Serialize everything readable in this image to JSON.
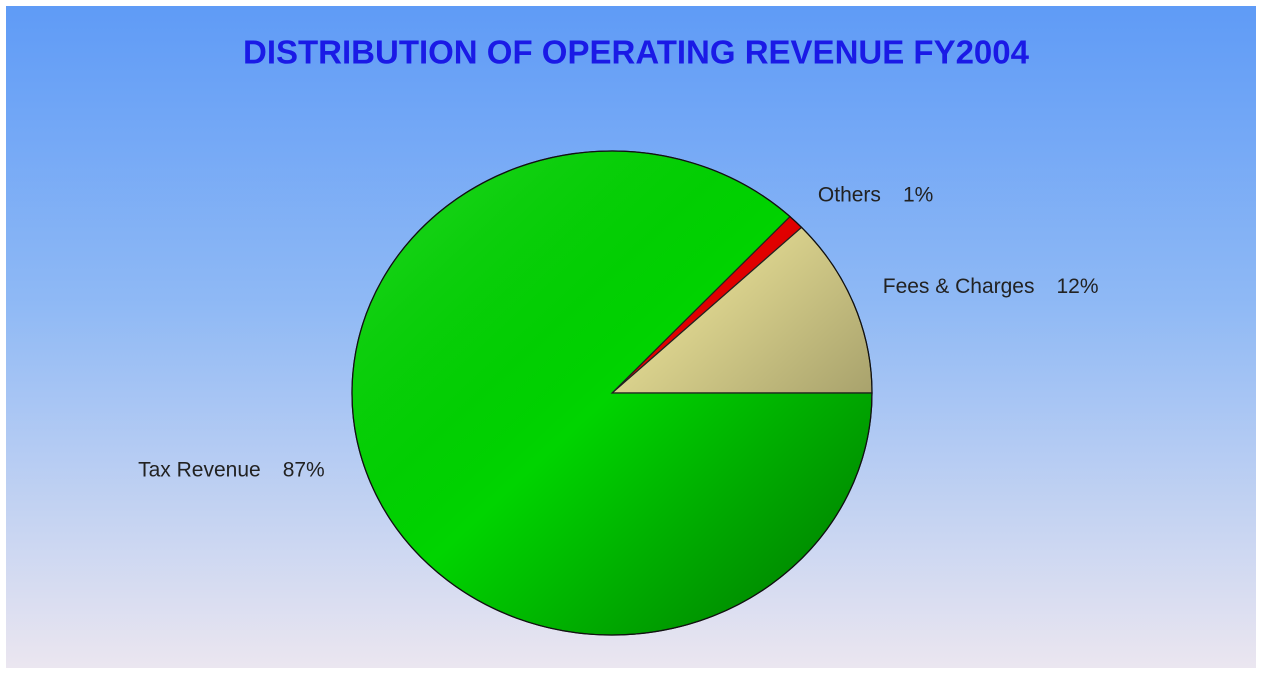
{
  "chart_data": {
    "type": "pie",
    "title": "DISTRIBUTION OF OPERATING REVENUE FY2004",
    "categories": [
      "Fees & Charges",
      "Others",
      "Tax Revenue"
    ],
    "values": [
      12,
      1,
      87
    ],
    "value_labels": [
      "12%",
      "1%",
      "87%"
    ],
    "colors": [
      "#d9d18c",
      "#e00000",
      "#00d400"
    ]
  }
}
